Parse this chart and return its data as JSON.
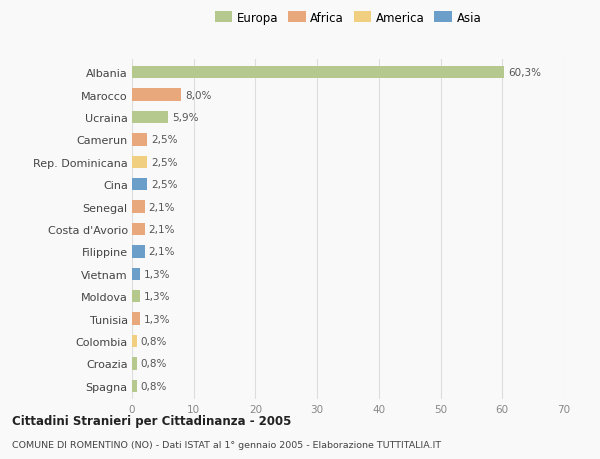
{
  "categories": [
    "Albania",
    "Marocco",
    "Ucraina",
    "Camerun",
    "Rep. Dominicana",
    "Cina",
    "Senegal",
    "Costa d'Avorio",
    "Filippine",
    "Vietnam",
    "Moldova",
    "Tunisia",
    "Colombia",
    "Croazia",
    "Spagna"
  ],
  "values": [
    60.3,
    8.0,
    5.9,
    2.5,
    2.5,
    2.5,
    2.1,
    2.1,
    2.1,
    1.3,
    1.3,
    1.3,
    0.8,
    0.8,
    0.8
  ],
  "labels": [
    "60,3%",
    "8,0%",
    "5,9%",
    "2,5%",
    "2,5%",
    "2,5%",
    "2,1%",
    "2,1%",
    "2,1%",
    "1,3%",
    "1,3%",
    "1,3%",
    "0,8%",
    "0,8%",
    "0,8%"
  ],
  "colors": [
    "#b5c98e",
    "#e8a87c",
    "#b5c98e",
    "#e8a87c",
    "#f0d080",
    "#6b9ec8",
    "#e8a87c",
    "#e8a87c",
    "#6b9ec8",
    "#6b9ec8",
    "#b5c98e",
    "#e8a87c",
    "#f0d080",
    "#b5c98e",
    "#b5c98e"
  ],
  "legend_labels": [
    "Europa",
    "Africa",
    "America",
    "Asia"
  ],
  "legend_colors": [
    "#b5c98e",
    "#e8a87c",
    "#f0d080",
    "#6b9ec8"
  ],
  "title_bold": "Cittadini Stranieri per Cittadinanza - 2005",
  "subtitle": "COMUNE DI ROMENTINO (NO) - Dati ISTAT al 1° gennaio 2005 - Elaborazione TUTTITALIA.IT",
  "xlim": [
    0,
    70
  ],
  "xticks": [
    0,
    10,
    20,
    30,
    40,
    50,
    60,
    70
  ],
  "background_color": "#f9f9f9",
  "grid_color": "#dddddd",
  "bar_height": 0.55
}
